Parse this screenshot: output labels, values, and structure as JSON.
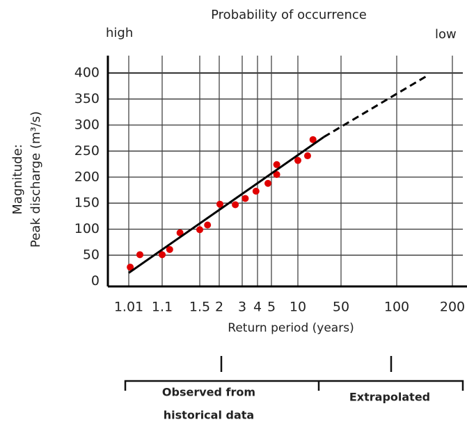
{
  "chart_data": {
    "type": "scatter",
    "title": "Probability of occurrence",
    "annotations": {
      "high": "high",
      "low": "low",
      "observed": [
        "Observed from",
        "historical data"
      ],
      "extrapolated": "Extrapolated"
    },
    "ylabel": [
      "Magnitude:",
      "Peak discharge (m³/s)"
    ],
    "xlabel": "Return period (years)",
    "xlim": [
      1,
      300
    ],
    "xticks": [
      1.01,
      1.1,
      1.5,
      2,
      3,
      4,
      5,
      10,
      50,
      100,
      200
    ],
    "ylim": [
      -10,
      400
    ],
    "yticks": [
      0,
      50,
      100,
      150,
      200,
      250,
      300,
      350,
      400
    ],
    "grid": true,
    "color": "#e00000",
    "x": [
      1.014,
      1.04,
      1.1,
      1.18,
      1.29,
      1.5,
      1.7,
      2.03,
      2.7,
      3.2,
      3.9,
      4.75,
      6,
      6,
      10,
      19,
      24
    ],
    "values": [
      27,
      51,
      51,
      61,
      93,
      99,
      108,
      148,
      147,
      159,
      173,
      188,
      205,
      224,
      232,
      241,
      272
    ],
    "fit_line": {
      "x": [
        1.01,
        34
      ],
      "values": [
        16,
        277
      ],
      "color": "#000000"
    },
    "extrapolation": {
      "x": [
        34,
        152
      ],
      "values": [
        277,
        393
      ],
      "color": "#000000"
    }
  }
}
